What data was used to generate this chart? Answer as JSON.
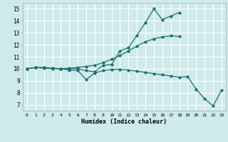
{
  "title": "",
  "xlabel": "Humidex (Indice chaleur)",
  "xlim": [
    -0.5,
    23.5
  ],
  "ylim": [
    6.5,
    15.5
  ],
  "yticks": [
    7,
    8,
    9,
    10,
    11,
    12,
    13,
    14,
    15
  ],
  "xticks": [
    0,
    1,
    2,
    3,
    4,
    5,
    6,
    7,
    8,
    9,
    10,
    11,
    12,
    13,
    14,
    15,
    16,
    17,
    18,
    19,
    20,
    21,
    22,
    23
  ],
  "bg_color": "#ceeaea",
  "grid_color": "#ffffff",
  "line_color": "#1a7070",
  "line1_x": [
    0,
    1,
    2,
    3,
    4,
    5,
    6,
    7,
    8,
    9,
    10,
    11,
    12,
    13,
    14,
    15,
    16,
    17,
    18
  ],
  "line1_y": [
    10.0,
    10.1,
    10.1,
    10.05,
    10.0,
    10.0,
    10.0,
    9.85,
    9.75,
    10.3,
    10.35,
    11.5,
    11.75,
    12.8,
    13.85,
    15.0,
    14.1,
    14.4,
    14.7
  ],
  "line2_x": [
    0,
    1,
    2,
    3,
    4,
    5,
    6,
    7,
    8,
    9,
    10,
    11,
    12,
    13,
    14,
    15,
    16,
    17,
    18
  ],
  "line2_y": [
    10.0,
    10.1,
    10.05,
    10.0,
    10.0,
    10.05,
    10.1,
    10.2,
    10.3,
    10.5,
    10.8,
    11.1,
    11.5,
    11.9,
    12.25,
    12.5,
    12.65,
    12.75,
    12.7
  ],
  "line3_x": [
    0,
    1,
    2,
    3,
    4,
    5,
    6,
    7,
    8,
    9,
    10,
    11,
    12,
    13,
    14,
    15,
    16,
    17,
    18,
    19,
    20,
    21,
    22,
    23
  ],
  "line3_y": [
    10.0,
    10.1,
    10.1,
    10.05,
    10.0,
    9.9,
    9.85,
    9.1,
    9.65,
    9.85,
    9.95,
    9.95,
    9.9,
    9.8,
    9.7,
    9.6,
    9.5,
    9.4,
    9.3,
    9.35,
    8.3,
    7.5,
    6.9,
    8.2
  ]
}
